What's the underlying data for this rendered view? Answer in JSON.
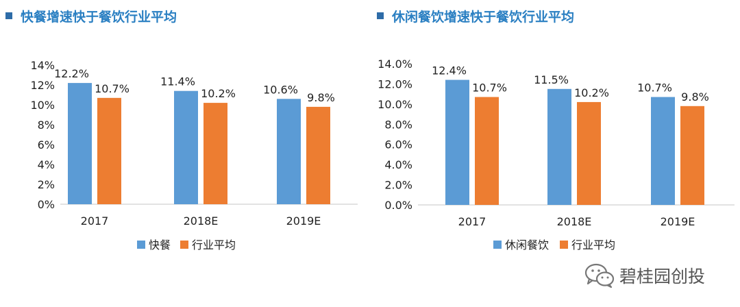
{
  "colors": {
    "title": "#2a7fc2",
    "title_marker": "#2e6ca8",
    "series1": "#5b9bd5",
    "series2": "#ed7d31",
    "axis": "#d9d9d9",
    "text": "#222222"
  },
  "watermark": {
    "text": "碧桂园创投",
    "icon": "wechat-icon"
  },
  "chart_data": [
    {
      "type": "bar",
      "title": "快餐增速快于餐饮行业平均",
      "categories": [
        "2017",
        "2018E",
        "2019E"
      ],
      "series": [
        {
          "name": "快餐",
          "values": [
            12.2,
            11.4,
            10.6
          ],
          "labels": [
            "12.2%",
            "11.4%",
            "10.6%"
          ]
        },
        {
          "name": "行业平均",
          "values": [
            10.7,
            10.2,
            9.8
          ],
          "labels": [
            "10.7%",
            "10.2%",
            "9.8%"
          ]
        }
      ],
      "ylim": [
        0,
        14
      ],
      "yticks": [
        0,
        2,
        4,
        6,
        8,
        10,
        12,
        14
      ],
      "ytick_labels": [
        "0%",
        "2%",
        "4%",
        "6%",
        "8%",
        "10%",
        "12%",
        "14%"
      ],
      "grid": false,
      "legend": "bottom"
    },
    {
      "type": "bar",
      "title": "休闲餐饮增速快于餐饮行业平均",
      "categories": [
        "2017",
        "2018E",
        "2019E"
      ],
      "series": [
        {
          "name": "休闲餐饮",
          "values": [
            12.4,
            11.5,
            10.7
          ],
          "labels": [
            "12.4%",
            "11.5%",
            "10.7%"
          ]
        },
        {
          "name": "行业平均",
          "values": [
            10.7,
            10.2,
            9.8
          ],
          "labels": [
            "10.7%",
            "10.2%",
            "9.8%"
          ]
        }
      ],
      "ylim": [
        0,
        14
      ],
      "yticks": [
        0,
        2,
        4,
        6,
        8,
        10,
        12,
        14
      ],
      "ytick_labels": [
        "0.0%",
        "2.0%",
        "4.0%",
        "6.0%",
        "8.0%",
        "10.0%",
        "12.0%",
        "14.0%"
      ],
      "grid": false,
      "legend": "bottom"
    }
  ]
}
